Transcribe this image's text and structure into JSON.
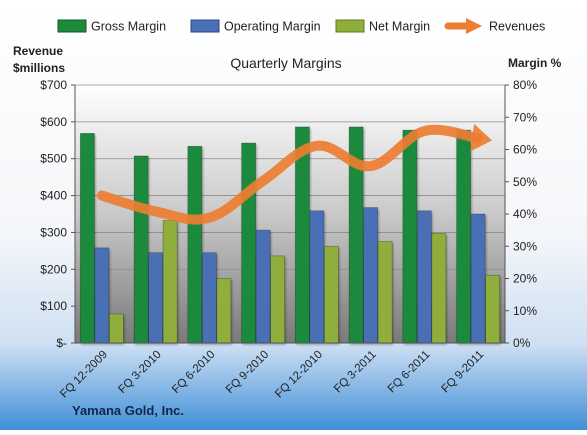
{
  "chart_data": {
    "type": "bar",
    "title": "Quarterly Margins",
    "company": "Yamana Gold, Inc.",
    "left_axis_label_line1": "Revenue",
    "left_axis_label_line2": "$millions",
    "right_axis_label": "Margin %",
    "categories": [
      "FQ 12-2009",
      "FQ 3-2010",
      "FQ 6-2010",
      "FQ 9-2010",
      "FQ 12-2010",
      "FQ 3-2011",
      "FQ 6-2011",
      "FQ 9-2011"
    ],
    "series": [
      {
        "name": "Gross Margin",
        "axis": "right",
        "kind": "bar",
        "values": [
          65,
          58,
          61,
          62,
          67,
          67,
          66,
          66
        ],
        "color": "#1f8a3c"
      },
      {
        "name": "Operating Margin",
        "axis": "right",
        "kind": "bar",
        "values": [
          29.5,
          28,
          28,
          35,
          41,
          42,
          41,
          40
        ],
        "color": "#4a6fb5"
      },
      {
        "name": "Net Margin",
        "axis": "right",
        "kind": "bar",
        "values": [
          9,
          38,
          20,
          27,
          30,
          31.5,
          34,
          21
        ],
        "color": "#8fae3b"
      },
      {
        "name": "Revenues",
        "axis": "left",
        "kind": "line",
        "values": [
          400,
          357,
          340,
          440,
          535,
          480,
          575,
          555
        ],
        "color": "#ed7d31"
      }
    ],
    "left_ylim": [
      0,
      700
    ],
    "left_ticks": [
      "$-",
      "$100",
      "$200",
      "$300",
      "$400",
      "$500",
      "$600",
      "$700"
    ],
    "right_ylim": [
      0,
      80
    ],
    "right_ticks": [
      "0%",
      "10%",
      "20%",
      "30%",
      "40%",
      "50%",
      "60%",
      "70%",
      "80%"
    ],
    "grid": true,
    "legend_position": "top"
  }
}
